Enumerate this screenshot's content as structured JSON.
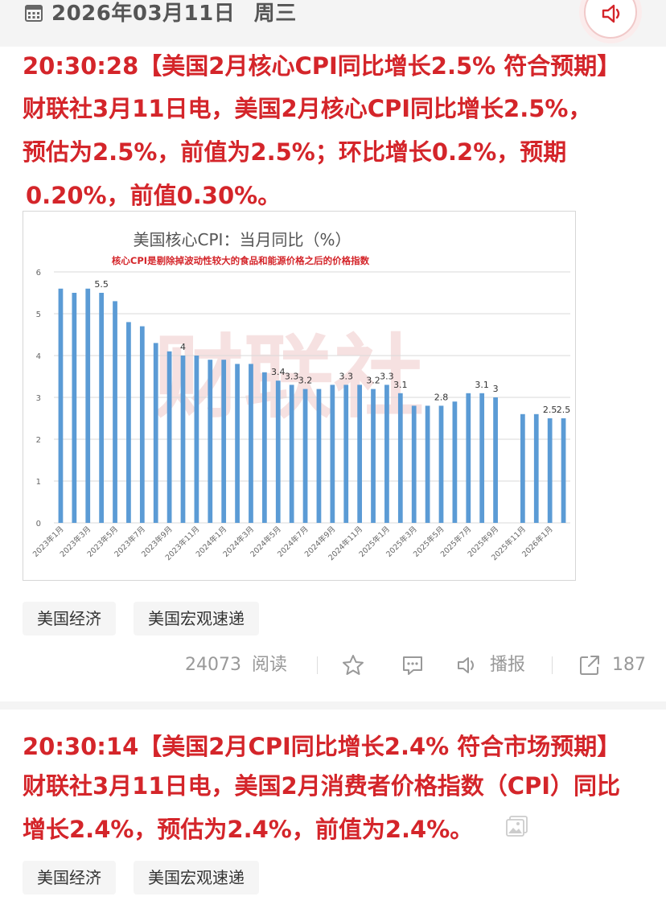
{
  "date_bar": {
    "date": "2026年03月11日",
    "weekday": "周三",
    "icons": [
      "calendar-icon",
      "speaker-icon"
    ]
  },
  "news1": {
    "headline": "20:30:28【美国2月核心CPI同比增长2.5% 符合预期】",
    "body_lines": [
      "财联社3月11日电，美国2月核心CPI同比增长2.5%，",
      "预估为2.5%，前值为2.5%；环比增长0.2%，预期",
      "0.20%，前值0.30%。"
    ],
    "tags": [
      "美国经济",
      "美国宏观速递"
    ],
    "actions": {
      "read_count": "24073",
      "read_label": "阅读",
      "broadcast_label": "播报",
      "share_count": "187"
    }
  },
  "chart_data": {
    "type": "bar",
    "title": "美国核心CPI：当月同比（%）",
    "subtitle": "核心CPI是剔除掉波动性较大的食品和能源价格之后的价格指数",
    "watermark": "财联社",
    "ylim": [
      0,
      6
    ],
    "yticks": [
      "0",
      "1",
      "2",
      "3",
      "4",
      "5",
      "6"
    ],
    "categories": [
      "2023年1月",
      "2023年2月",
      "2023年3月",
      "2023年4月",
      "2023年5月",
      "2023年6月",
      "2023年7月",
      "2023年8月",
      "2023年9月",
      "2023年10月",
      "2023年11月",
      "2023年12月",
      "2024年1月",
      "2024年2月",
      "2024年3月",
      "2024年4月",
      "2024年5月",
      "2024年6月",
      "2024年7月",
      "2024年8月",
      "2024年9月",
      "2024年10月",
      "2024年11月",
      "2024年12月",
      "2025年1月",
      "2025年2月",
      "2025年3月",
      "2025年4月",
      "2025年5月",
      "2025年6月",
      "2025年7月",
      "2025年8月",
      "2025年9月",
      "2025年10月",
      "2025年11月",
      "2025年12月",
      "2026年1月",
      "2026年2月"
    ],
    "shown_tick_labels": [
      "2023年1月",
      "2023年3月",
      "2023年5月",
      "2023年7月",
      "2023年9月",
      "2023年11月",
      "2024年1月",
      "2024年3月",
      "2024年5月",
      "2024年7月",
      "2024年9月",
      "2024年11月",
      "2025年1月",
      "2025年3月",
      "2025年5月",
      "2025年7月",
      "2025年9月",
      "2025年11月",
      "2026年1月"
    ],
    "values": [
      5.6,
      5.5,
      5.6,
      5.5,
      5.3,
      4.8,
      4.7,
      4.3,
      4.1,
      4.0,
      4.0,
      3.9,
      3.9,
      3.8,
      3.8,
      3.6,
      3.4,
      3.3,
      3.2,
      3.2,
      3.3,
      3.3,
      3.3,
      3.2,
      3.3,
      3.1,
      2.8,
      2.8,
      2.8,
      2.9,
      3.1,
      3.1,
      3.0,
      null,
      2.6,
      2.6,
      2.5,
      2.5
    ],
    "data_labels": [
      {
        "index": 3,
        "text": "5.5"
      },
      {
        "index": 9,
        "text": "4"
      },
      {
        "index": 16,
        "text": "3.4"
      },
      {
        "index": 17,
        "text": "3.3"
      },
      {
        "index": 18,
        "text": "3.2"
      },
      {
        "index": 21,
        "text": "3.3"
      },
      {
        "index": 23,
        "text": "3.2"
      },
      {
        "index": 24,
        "text": "3.3"
      },
      {
        "index": 25,
        "text": "3.1"
      },
      {
        "index": 28,
        "text": "2.8"
      },
      {
        "index": 31,
        "text": "3.1"
      },
      {
        "index": 32,
        "text": "3"
      },
      {
        "index": 36,
        "text": "2.5"
      },
      {
        "index": 37,
        "text": "2.5"
      }
    ],
    "grid": true,
    "legend": "none",
    "colors": {
      "bar": "#5b9bd5",
      "title": "#555555",
      "subtitle": "#d4252a",
      "grid": "#d9d9d9"
    }
  },
  "news2": {
    "headline": "20:30:14【美国2月CPI同比增长2.4% 符合市场预期】",
    "body_lines": [
      "财联社3月11日电，美国2月消费者价格指数（CPI）同比",
      "增长2.4%，预估为2.4%，前值为2.4%。"
    ],
    "tags": [
      "美国经济",
      "美国宏观速递"
    ],
    "icons": [
      "image-icon"
    ]
  },
  "colors": {
    "accent_red": "#d4252a",
    "muted": "#999999",
    "tag_bg": "#f5f5f5"
  }
}
